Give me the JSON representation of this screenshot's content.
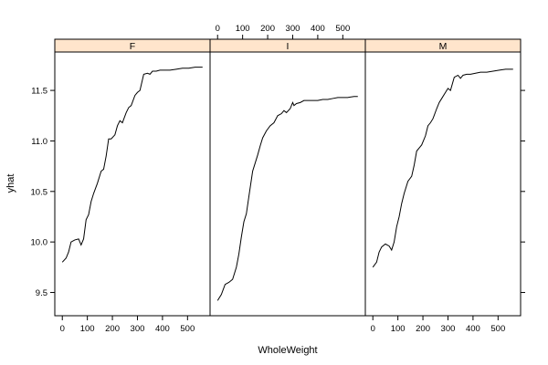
{
  "chart_data": {
    "type": "line",
    "xlabel": "WholeWeight",
    "ylabel": "yhat",
    "xlim": [
      -30,
      590
    ],
    "ylim": [
      9.27,
      11.88
    ],
    "x_ticks": [
      0,
      100,
      200,
      300,
      400,
      500
    ],
    "y_ticks": [
      9.5,
      10.0,
      10.5,
      11.0,
      11.5
    ],
    "x_tick_labels": [
      "0",
      "100",
      "200",
      "300",
      "400",
      "500"
    ],
    "y_tick_labels": [
      "9.5",
      "10.0",
      "10.5",
      "11.0",
      "11.5"
    ],
    "colors": {
      "strip_bg": "#ffe5cc",
      "line": "#000000",
      "frame": "#000000"
    },
    "panels": [
      {
        "name": "F",
        "x": [
          0,
          15,
          25,
          35,
          50,
          65,
          75,
          85,
          95,
          105,
          115,
          125,
          140,
          155,
          165,
          175,
          185,
          195,
          210,
          220,
          230,
          240,
          255,
          265,
          275,
          290,
          300,
          310,
          325,
          340,
          350,
          360,
          375,
          390,
          410,
          430,
          455,
          480,
          505,
          530,
          560
        ],
        "y": [
          9.8,
          9.84,
          9.9,
          10.0,
          10.02,
          10.03,
          9.97,
          10.03,
          10.22,
          10.27,
          10.4,
          10.48,
          10.58,
          10.7,
          10.72,
          10.85,
          11.02,
          11.02,
          11.06,
          11.15,
          11.2,
          11.18,
          11.28,
          11.33,
          11.35,
          11.45,
          11.48,
          11.5,
          11.66,
          11.67,
          11.66,
          11.69,
          11.69,
          11.7,
          11.7,
          11.7,
          11.71,
          11.72,
          11.72,
          11.73,
          11.73
        ]
      },
      {
        "name": "I",
        "x": [
          0,
          15,
          30,
          45,
          60,
          75,
          85,
          95,
          105,
          115,
          125,
          140,
          150,
          160,
          170,
          180,
          195,
          210,
          225,
          240,
          255,
          265,
          275,
          290,
          300,
          305,
          315,
          330,
          345,
          360,
          380,
          400,
          420,
          440,
          460,
          480,
          500,
          520,
          545,
          560
        ],
        "y": [
          9.42,
          9.48,
          9.58,
          9.6,
          9.63,
          9.75,
          9.88,
          10.05,
          10.2,
          10.28,
          10.45,
          10.7,
          10.78,
          10.86,
          10.95,
          11.03,
          11.1,
          11.15,
          11.18,
          11.25,
          11.27,
          11.3,
          11.28,
          11.32,
          11.38,
          11.35,
          11.37,
          11.38,
          11.4,
          11.4,
          11.4,
          11.4,
          11.41,
          11.41,
          11.42,
          11.43,
          11.43,
          11.43,
          11.44,
          11.44
        ]
      },
      {
        "name": "M",
        "x": [
          0,
          15,
          25,
          35,
          50,
          65,
          75,
          85,
          95,
          105,
          115,
          125,
          140,
          155,
          165,
          175,
          185,
          195,
          210,
          220,
          230,
          240,
          255,
          265,
          275,
          290,
          300,
          310,
          325,
          340,
          350,
          360,
          375,
          390,
          410,
          430,
          455,
          480,
          505,
          530,
          560
        ],
        "y": [
          9.75,
          9.8,
          9.9,
          9.95,
          9.98,
          9.96,
          9.92,
          10.0,
          10.15,
          10.25,
          10.38,
          10.48,
          10.6,
          10.65,
          10.76,
          10.9,
          10.93,
          10.96,
          11.05,
          11.15,
          11.18,
          11.22,
          11.32,
          11.38,
          11.42,
          11.48,
          11.52,
          11.5,
          11.63,
          11.65,
          11.62,
          11.65,
          11.66,
          11.66,
          11.67,
          11.68,
          11.68,
          11.69,
          11.7,
          11.71,
          11.71
        ]
      }
    ]
  }
}
